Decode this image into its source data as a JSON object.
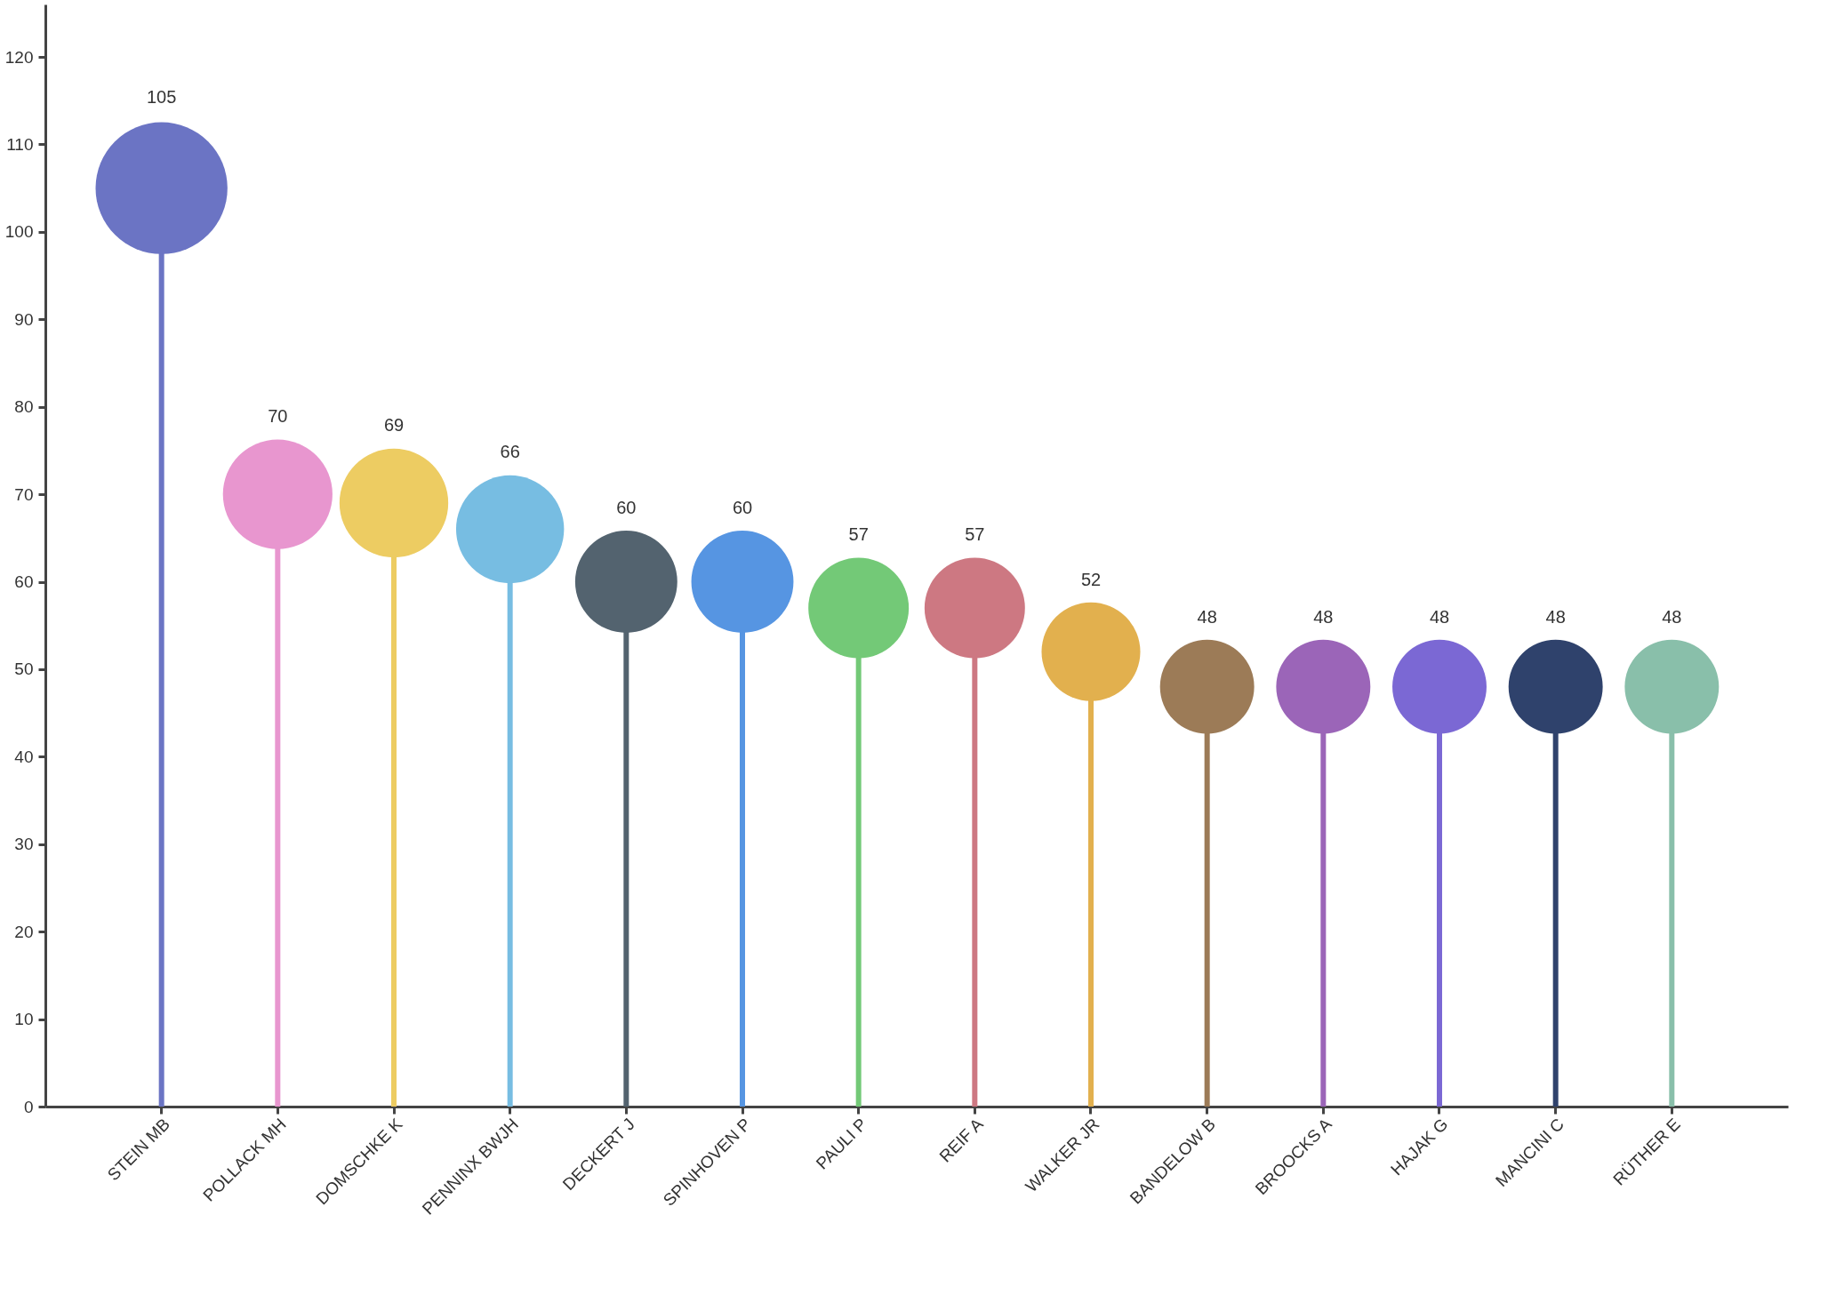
{
  "chart_data": {
    "type": "lollipop",
    "categories": [
      "STEIN MB",
      "POLLACK MH",
      "DOMSCHKE K",
      "PENNINX BWJH",
      "DECKERT J",
      "SPINHOVEN P",
      "PAULI P",
      "REIF A",
      "WALKER JR",
      "BANDELOW B",
      "BROOCKS A",
      "HAJAK G",
      "MANCINI C",
      "RÜTHER E"
    ],
    "values": [
      105,
      70,
      69,
      66,
      60,
      60,
      57,
      57,
      52,
      48,
      48,
      48,
      48,
      48
    ],
    "colors": [
      "#6b74c4",
      "#e896cf",
      "#edcc62",
      "#77bde2",
      "#53636f",
      "#5695e2",
      "#73c977",
      "#cd7882",
      "#e2b04e",
      "#9c7b57",
      "#9b65b8",
      "#7b68d4",
      "#2f426c",
      "#89bfaa"
    ],
    "sizes": [
      1,
      0.69,
      0.68,
      0.67,
      0.6,
      0.6,
      0.58,
      0.58,
      0.56,
      0.51,
      0.51,
      0.51,
      0.51,
      0.51
    ],
    "ylim": [
      0,
      126
    ],
    "yticks": [
      0,
      10,
      20,
      30,
      40,
      50,
      60,
      70,
      80,
      90,
      100,
      110,
      120
    ],
    "data_labels": true,
    "grid": false,
    "legend": false
  }
}
